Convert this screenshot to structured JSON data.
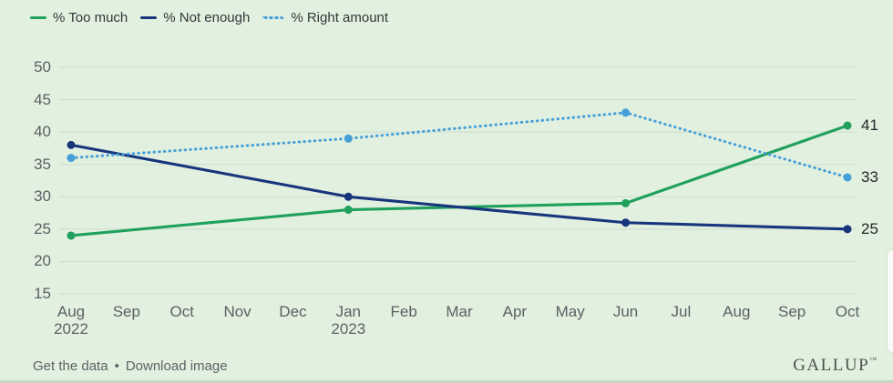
{
  "chart_data": {
    "type": "line",
    "title": "",
    "xlabel": "",
    "ylabel": "",
    "x_tick_labels": [
      "Aug",
      "Sep",
      "Oct",
      "Nov",
      "Dec",
      "Jan",
      "Feb",
      "Mar",
      "Apr",
      "May",
      "Jun",
      "Jul",
      "Aug",
      "Sep",
      "Oct"
    ],
    "x_tick_sublabels": [
      "2022",
      "",
      "",
      "",
      "",
      "2023",
      "",
      "",
      "",
      "",
      "",
      "",
      "",
      "",
      ""
    ],
    "x_data_indices": [
      0,
      5,
      10,
      14
    ],
    "x_data_labels": [
      "Aug 2022",
      "Jan 2023",
      "Jun 2023",
      "Oct 2023"
    ],
    "series": [
      {
        "name": "% Too much",
        "color": "#1fa05c",
        "style": "solid",
        "values": [
          24,
          28,
          29,
          41
        ],
        "end_label": "41"
      },
      {
        "name": "% Not enough",
        "color": "#17357d",
        "style": "solid",
        "values": [
          38,
          30,
          26,
          25
        ],
        "end_label": "25"
      },
      {
        "name": "% Right amount",
        "color": "#459fd9",
        "style": "dotted",
        "values": [
          36,
          39,
          43,
          33
        ],
        "end_label": "33"
      }
    ],
    "yticks": [
      50,
      45,
      40,
      35,
      30,
      25,
      20,
      15
    ],
    "ylim": [
      15,
      50
    ],
    "grid": true,
    "legend_position": "top-left"
  },
  "footer": {
    "links": [
      {
        "label": "Get the data"
      },
      {
        "label": "Download image"
      }
    ],
    "separator": "•",
    "brand": "GALLUP",
    "brand_mark": "™"
  },
  "colors": {
    "background": "#e2f0df",
    "gridline": "#cfe0d2",
    "axis_text": "#5c6064",
    "end_label_text": "#24272a",
    "legend_text": "#33373b"
  }
}
